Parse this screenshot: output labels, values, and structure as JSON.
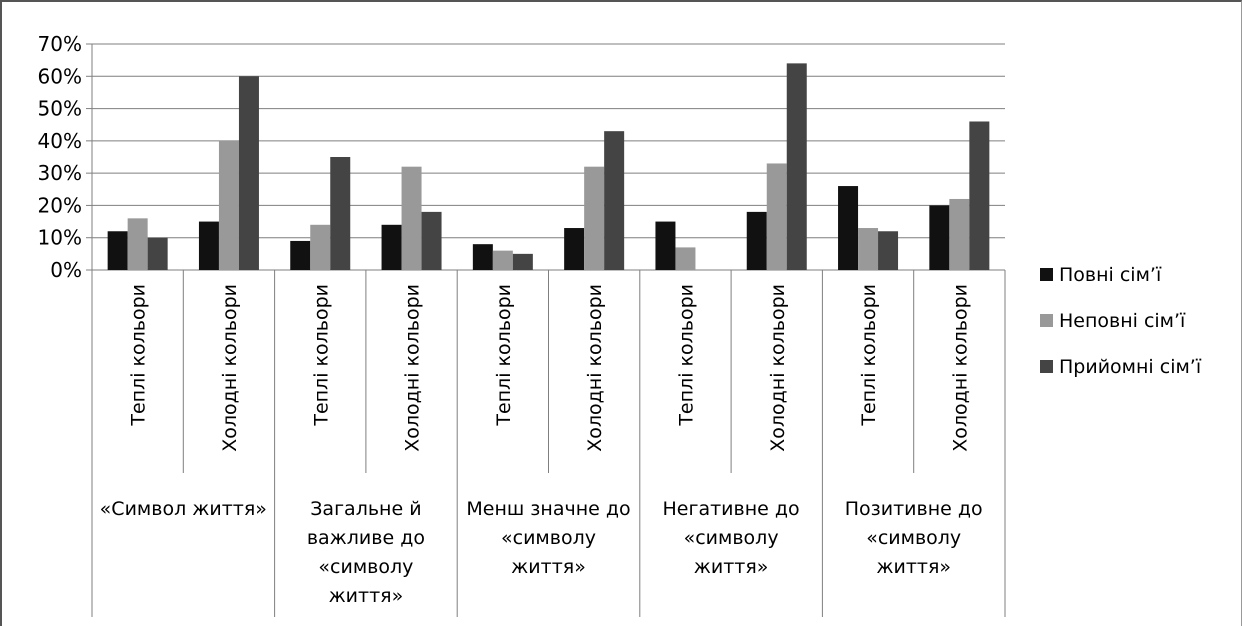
{
  "chart_data": {
    "type": "bar",
    "yticks": [
      "0%",
      "10%",
      "20%",
      "30%",
      "40%",
      "50%",
      "60%",
      "70%"
    ],
    "ylim": [
      0,
      70
    ],
    "groups": [
      {
        "label_lines": [
          "«Символ життя»"
        ],
        "categories": [
          "Теплі кольори",
          "Холодні кольори"
        ]
      },
      {
        "label_lines": [
          "Загальне й",
          "важливе до",
          "«символу",
          "життя»"
        ],
        "categories": [
          "Теплі кольори",
          "Холодні кольори"
        ]
      },
      {
        "label_lines": [
          "Менш значне до",
          "«символу",
          "життя»"
        ],
        "categories": [
          "Теплі кольори",
          "Холодні кольори"
        ]
      },
      {
        "label_lines": [
          "Негативне до",
          "«символу",
          "життя»"
        ],
        "categories": [
          "Теплі кольори",
          "Холодні кольори"
        ]
      },
      {
        "label_lines": [
          "Позитивне до",
          "«символу",
          "життя»"
        ],
        "categories": [
          "Теплі кольори",
          "Холодні кольори"
        ]
      }
    ],
    "series": [
      {
        "name": "Повні сім’ї",
        "color": "#111111",
        "values": [
          12,
          15,
          9,
          14,
          8,
          13,
          15,
          18,
          26,
          20
        ]
      },
      {
        "name": "Неповні сім’ї",
        "color": "#999999",
        "values": [
          16,
          40,
          14,
          32,
          6,
          32,
          7,
          33,
          13,
          22
        ]
      },
      {
        "name": "Прийомні сім’ї",
        "color": "#444444",
        "values": [
          10,
          60,
          35,
          18,
          5,
          43,
          0,
          64,
          12,
          46
        ]
      }
    ],
    "grid": true,
    "legend": "right"
  }
}
